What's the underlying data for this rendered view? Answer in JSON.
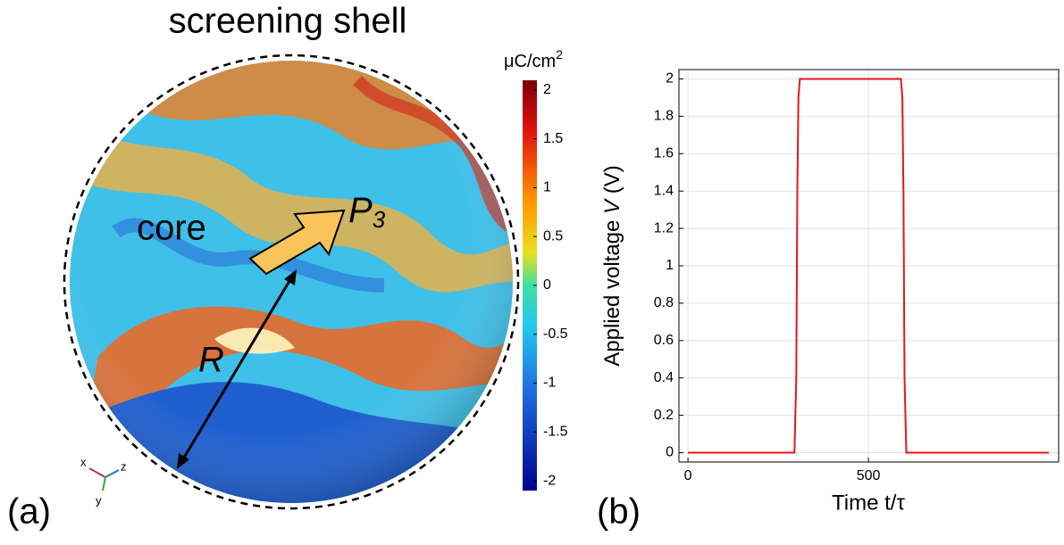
{
  "chart_data": [
    {
      "type": "surface",
      "panel_label": "(a)",
      "title": "screening shell",
      "annotations": {
        "core": "core",
        "arrow_label": {
          "text": "P",
          "sub": "3"
        },
        "radius": "R"
      },
      "axes_triad": [
        "x",
        "y",
        "z"
      ],
      "colorbar_unit": {
        "text": "μC/cm",
        "sup": "2"
      },
      "clim": [
        -2.1,
        2.1
      ],
      "cticks": [
        2,
        1.5,
        1,
        0.5,
        0,
        -0.5,
        -1,
        -1.5,
        -2
      ]
    },
    {
      "type": "line",
      "panel_label": "(b)",
      "xlabel": "Time t/τ",
      "ylabel": [
        {
          "text": "Applied voltage "
        },
        {
          "text": "V",
          "italic": true
        },
        {
          "text": " (V)"
        }
      ],
      "x": [
        0,
        295,
        300,
        303,
        306,
        310,
        590,
        594,
        597,
        600,
        605,
        1000
      ],
      "values": [
        0,
        0,
        0.4,
        1.4,
        1.9,
        2,
        2,
        1.9,
        1.4,
        0.4,
        0,
        0
      ],
      "color": "#e8141b",
      "xlim": [
        -25,
        1027
      ],
      "ylim": [
        -0.05,
        2.05
      ],
      "xticks": [
        0,
        500
      ],
      "yticks": [
        0,
        0.2,
        0.4,
        0.6,
        0.8,
        1,
        1.2,
        1.4,
        1.6,
        1.8,
        2
      ],
      "grid": true
    }
  ]
}
